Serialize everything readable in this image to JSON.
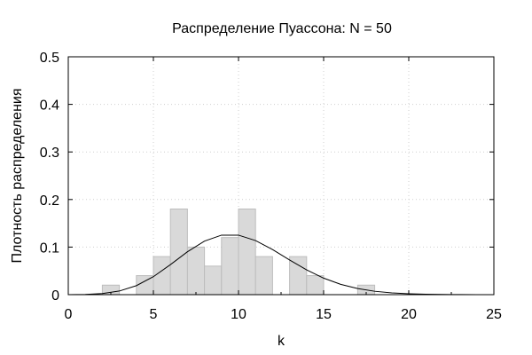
{
  "chart_data": {
    "type": "bar",
    "title": "Распределение Пуассона: N = 50",
    "xlabel": "k",
    "ylabel": "Плотность распределения",
    "xlim": [
      0,
      25
    ],
    "ylim": [
      0,
      0.5
    ],
    "xticks": [
      0,
      5,
      10,
      15,
      20,
      25
    ],
    "xtick_labels": [
      "0",
      "5",
      "10",
      "15",
      "20",
      "25"
    ],
    "yticks": [
      0,
      0.1,
      0.2,
      0.3,
      0.4,
      0.5
    ],
    "ytick_labels": [
      "0",
      "0.1",
      "0.2",
      "0.3",
      "0.4",
      "0.5"
    ],
    "grid": true,
    "histogram": {
      "bin_width": 1,
      "bins": [
        {
          "x0": 2,
          "x1": 3,
          "density": 0.02
        },
        {
          "x0": 4,
          "x1": 5,
          "density": 0.04
        },
        {
          "x0": 5,
          "x1": 6,
          "density": 0.08
        },
        {
          "x0": 6,
          "x1": 7,
          "density": 0.18
        },
        {
          "x0": 7,
          "x1": 8,
          "density": 0.1
        },
        {
          "x0": 8,
          "x1": 9,
          "density": 0.06
        },
        {
          "x0": 9,
          "x1": 10,
          "density": 0.12
        },
        {
          "x0": 10,
          "x1": 11,
          "density": 0.18
        },
        {
          "x0": 11,
          "x1": 12,
          "density": 0.08
        },
        {
          "x0": 13,
          "x1": 14,
          "density": 0.08
        },
        {
          "x0": 14,
          "x1": 15,
          "density": 0.04
        },
        {
          "x0": 17,
          "x1": 18,
          "density": 0.02
        }
      ]
    },
    "pmf_curve": {
      "lambda": 10,
      "x": [
        0,
        1,
        2,
        3,
        4,
        5,
        6,
        7,
        8,
        9,
        10,
        11,
        12,
        13,
        14,
        15,
        16,
        17,
        18,
        19,
        20,
        21,
        22,
        23,
        24,
        25
      ],
      "y": [
        5e-05,
        0.0005,
        0.0023,
        0.0076,
        0.0189,
        0.0378,
        0.0631,
        0.0901,
        0.1126,
        0.1251,
        0.1251,
        0.1137,
        0.0948,
        0.0729,
        0.0521,
        0.0347,
        0.0217,
        0.0128,
        0.0071,
        0.0037,
        0.0019,
        0.0009,
        0.0004,
        0.0002,
        0.0001,
        3e-05
      ]
    }
  }
}
